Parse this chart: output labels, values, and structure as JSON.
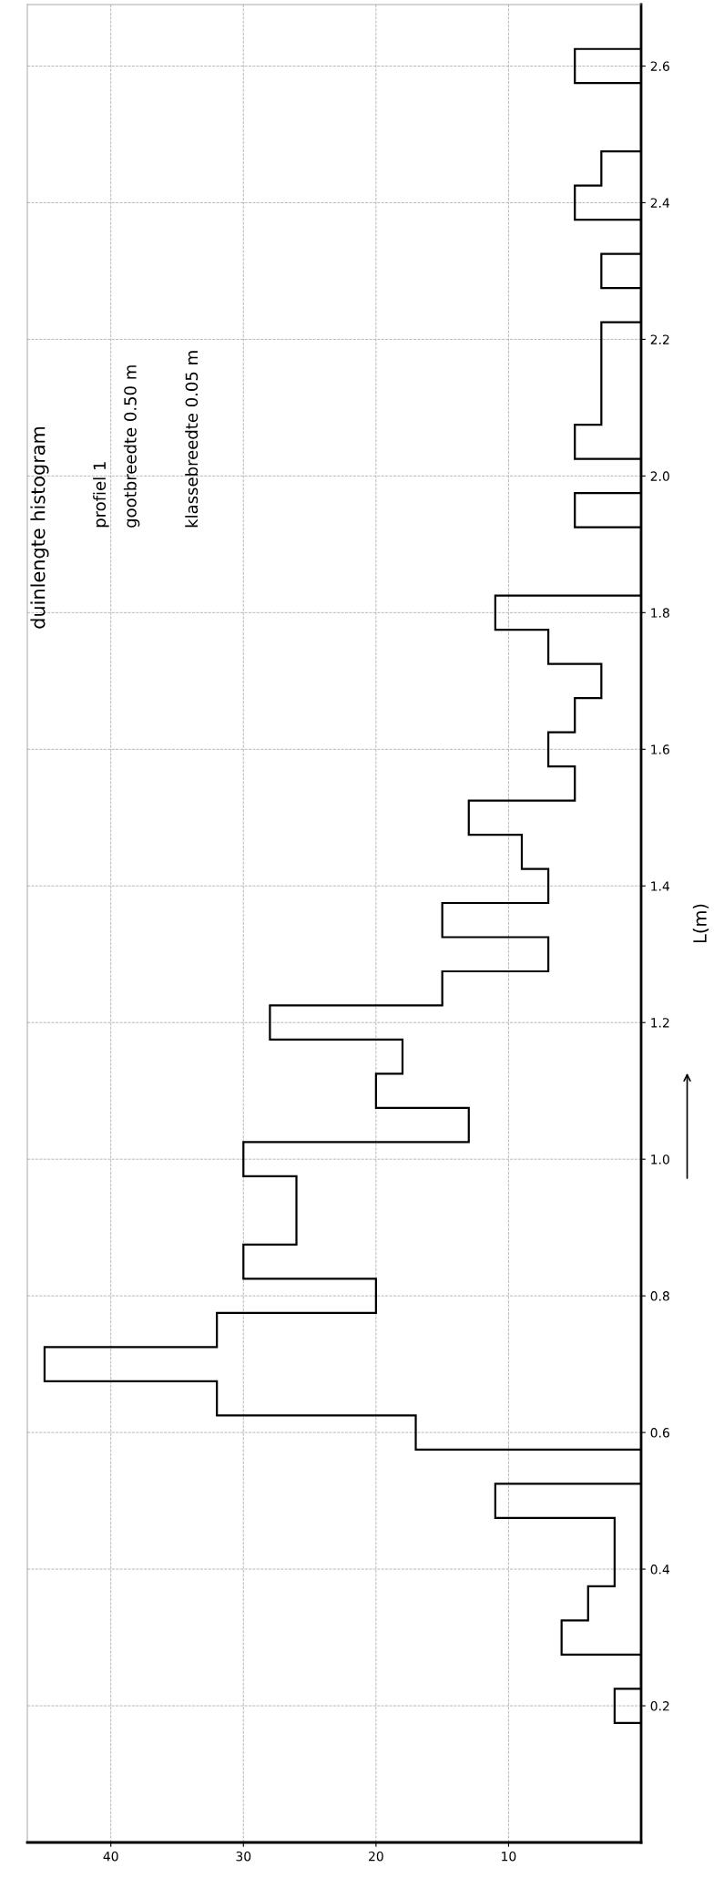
{
  "chart_data": {
    "type": "histogram",
    "orientation": "horizontal",
    "title": "duinlengte histogram",
    "annotations": [
      "profiel 1",
      "gootbreedte 0.50 m",
      "klassebreedte 0.05 m"
    ],
    "ylabel": "L(m)",
    "bins": [
      0.175,
      0.225,
      0.275,
      0.325,
      0.375,
      0.425,
      0.475,
      0.525,
      0.575,
      0.625,
      0.675,
      0.725,
      0.775,
      0.825,
      0.875,
      0.925,
      0.975,
      1.025,
      1.075,
      1.125,
      1.175,
      1.225,
      1.275,
      1.325,
      1.375,
      1.425,
      1.475,
      1.525,
      1.575,
      1.625,
      1.675,
      1.725,
      1.775,
      1.825,
      1.875,
      1.925,
      1.975,
      2.025,
      2.075,
      2.125,
      2.175,
      2.225,
      2.275,
      2.325,
      2.375,
      2.425,
      2.475,
      2.525,
      2.575,
      2.625
    ],
    "values": [
      2,
      0,
      6,
      4,
      2,
      2,
      11,
      0,
      17,
      32,
      45,
      32,
      20,
      30,
      26,
      26,
      30,
      13,
      20,
      18,
      28,
      15,
      7,
      15,
      7,
      9,
      13,
      5,
      7,
      5,
      3,
      7,
      11,
      0,
      0,
      5,
      0,
      5,
      3,
      3,
      3,
      0,
      3,
      0,
      5,
      3,
      0,
      0,
      5
    ],
    "color": "#000000",
    "xlim": [
      46.3,
      0
    ],
    "xticks": [
      10,
      20,
      30,
      40
    ],
    "ylim": [
      0,
      2.69
    ],
    "yticks": [
      0.2,
      0.4,
      0.6,
      0.8,
      {
        "value": 1,
        "label": "1.0"
      },
      1.2,
      1.4,
      1.6,
      1.8,
      {
        "value": 2,
        "label": "2.0"
      },
      2.2,
      2.4,
      2.6
    ],
    "grid": true
  }
}
